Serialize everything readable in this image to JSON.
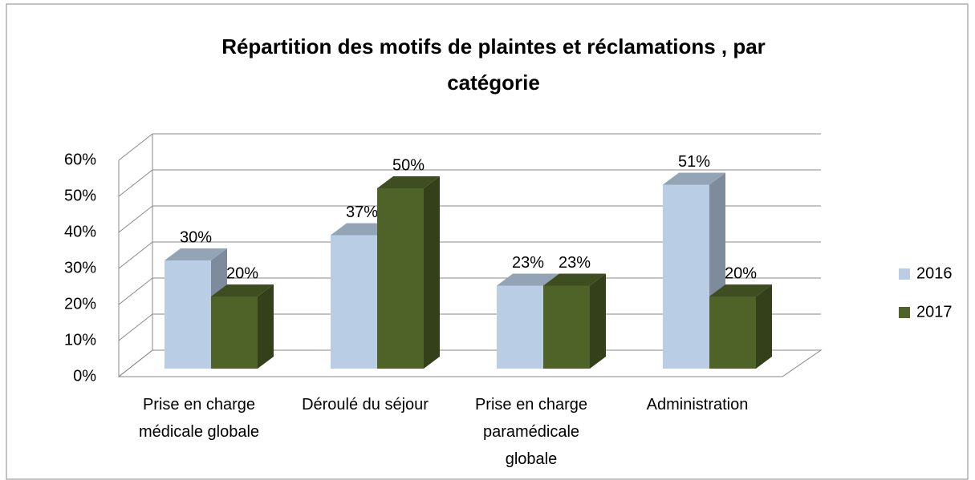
{
  "chart_data": {
    "type": "bar3d",
    "title": "Répartition des motifs de plaintes et réclamations , par catégorie",
    "categories": [
      "Prise en charge médicale globale",
      "Déroulé du séjour",
      "Prise en charge paramédicale globale",
      "Administration"
    ],
    "series": [
      {
        "name": "2016",
        "color": "#b9cde5",
        "values": [
          30,
          37,
          23,
          51
        ],
        "value_labels": [
          "30%",
          "37%",
          "23%",
          "51%"
        ]
      },
      {
        "name": "2017",
        "color": "#4f6228",
        "values": [
          20,
          50,
          23,
          20
        ],
        "value_labels": [
          "20%",
          "50%",
          "23%",
          "20%"
        ]
      }
    ],
    "ylim": [
      0,
      60
    ],
    "yticks": [
      {
        "value": 0,
        "label": "0%"
      },
      {
        "value": 10,
        "label": "10%"
      },
      {
        "value": 20,
        "label": "20%"
      },
      {
        "value": 30,
        "label": "30%"
      },
      {
        "value": 40,
        "label": "40%"
      },
      {
        "value": 50,
        "label": "50%"
      },
      {
        "value": 60,
        "label": "60%"
      }
    ],
    "grid": true,
    "legend": "right"
  }
}
